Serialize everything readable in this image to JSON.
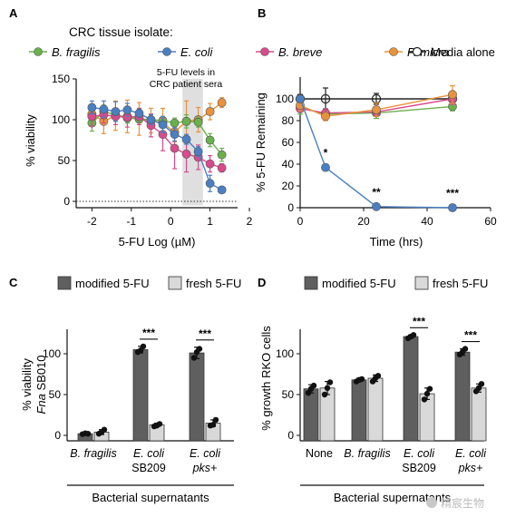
{
  "figure": {
    "colors": {
      "fragilis": "#6ab04c",
      "ecoli": "#4a7fc1",
      "breve": "#d94a8c",
      "micra": "#e8923c",
      "media": "#222222",
      "modified": "#5f5f5f",
      "fresh": "#d9d9d9",
      "band": "#d9d9d9"
    },
    "watermark": "精宸生物"
  },
  "chart_data": [
    {
      "panel": "A",
      "type": "line",
      "legend_title": "CRC tissue isolate:",
      "legend_placement": "top",
      "title": "",
      "xlabel_prefix": "5-FU Log (",
      "xlabel_unit": "µM",
      "xlabel_suffix": ")",
      "ylabel": "% viability",
      "xlim": [
        -2.4,
        1.7
      ],
      "ylim": [
        -5,
        150
      ],
      "xticks": [
        -2,
        -1,
        0,
        1,
        2
      ],
      "xticklabels": [
        "-2",
        "-1",
        "0",
        "1",
        "2"
      ],
      "yticks": [
        0,
        50,
        100,
        150
      ],
      "yticklabels": [
        "0",
        "50",
        "100",
        "150"
      ],
      "reference_line": 0,
      "annotation_line1": "5-FU levels in",
      "annotation_line2": "CRC patient sera",
      "highlight_range": [
        0.3,
        0.82
      ],
      "x": [
        -2.0,
        -1.7,
        -1.4,
        -1.1,
        -0.8,
        -0.5,
        -0.2,
        0.1,
        0.4,
        0.7,
        1.0,
        1.3
      ],
      "series": [
        {
          "name": "B. fragilis",
          "key": "fragilis",
          "values": [
            96,
            110,
            106,
            102,
            101,
            100,
            99,
            96,
            98,
            97,
            75,
            57
          ],
          "err": [
            10,
            8,
            8,
            6,
            5,
            4,
            5,
            6,
            8,
            6,
            8,
            8
          ]
        },
        {
          "name": "E. coli",
          "key": "ecoli",
          "values": [
            115,
            113,
            110,
            112,
            108,
            100,
            94,
            82,
            76,
            61,
            22,
            14
          ],
          "err": [
            8,
            10,
            12,
            8,
            5,
            6,
            10,
            8,
            6,
            6,
            10,
            3
          ]
        },
        {
          "name": "B. breve",
          "key": "breve",
          "values": [
            104,
            106,
            104,
            103,
            104,
            93,
            82,
            65,
            58,
            54,
            46,
            41
          ],
          "err": [
            12,
            10,
            10,
            12,
            10,
            14,
            20,
            25,
            22,
            15,
            10,
            5
          ]
        },
        {
          "name": "P. micra",
          "key": "micra",
          "values": [
            107,
            98,
            105,
            104,
            101,
            99,
            96,
            85,
            98,
            100,
            110,
            121
          ],
          "err": [
            12,
            15,
            18,
            20,
            20,
            15,
            18,
            12,
            25,
            15,
            10,
            6
          ]
        }
      ]
    },
    {
      "panel": "B",
      "type": "line",
      "legend_entry": "Media alone",
      "title": "",
      "xlabel": "Time (hrs)",
      "ylabel": "% 5-FU Remaining",
      "xlim": [
        0,
        60
      ],
      "ylim": [
        0,
        120
      ],
      "xticks": [
        0,
        20,
        40,
        60
      ],
      "xticklabels": [
        "0",
        "20",
        "40",
        "60"
      ],
      "yticks": [
        0,
        20,
        40,
        60,
        80,
        100
      ],
      "yticklabels": [
        "0",
        "20",
        "40",
        "60",
        "80",
        "100"
      ],
      "x": [
        0,
        8,
        24,
        48
      ],
      "series": [
        {
          "name": "Media alone",
          "key": "media",
          "values": [
            100,
            100,
            100,
            100
          ],
          "err": [
            4,
            10,
            5,
            5
          ]
        },
        {
          "name": "B. fragilis",
          "key": "fragilis",
          "values": [
            92,
            86,
            87,
            93
          ],
          "err": [
            6,
            4,
            5,
            4
          ]
        },
        {
          "name": "B. breve",
          "key": "breve",
          "values": [
            91,
            87,
            88,
            100
          ],
          "err": [
            3,
            4,
            3,
            5
          ]
        },
        {
          "name": "P. micra",
          "key": "micra",
          "values": [
            94,
            84,
            90,
            104
          ],
          "err": [
            5,
            4,
            6,
            8
          ]
        },
        {
          "name": "E. coli",
          "key": "ecoli",
          "values": [
            100,
            37,
            1,
            0
          ],
          "err": [
            0,
            2,
            1,
            1
          ]
        }
      ],
      "significance": [
        {
          "x": 8,
          "label": "*"
        },
        {
          "x": 24,
          "label": "**"
        },
        {
          "x": 48,
          "label": "***"
        }
      ]
    },
    {
      "panel": "C",
      "type": "bar",
      "legend": [
        "modified 5-FU",
        "fresh 5-FU"
      ],
      "legend_placement": "top",
      "title": "",
      "ylabel_line1": "% viability",
      "ylabel_line2_italic": "Fna",
      "ylabel_line2_rest": " SB010",
      "xlabel": "Bacterial supernatants",
      "ylim": [
        0,
        130
      ],
      "yticks": [
        0,
        50,
        100
      ],
      "yticklabels": [
        "0",
        "50",
        "100"
      ],
      "categories": [
        {
          "line1": "B. fragilis",
          "line1_italic": true,
          "line2": "",
          "line2_italic": false
        },
        {
          "line1": "E. coli",
          "line1_italic": true,
          "line2": "SB209",
          "line2_italic": false
        },
        {
          "line1": "E. coli",
          "line1_italic": true,
          "line2": "pks+",
          "line2_italic": true
        }
      ],
      "series": [
        {
          "name": "modified 5-FU",
          "key": "modified",
          "values": [
            2,
            105,
            101
          ],
          "err": [
            1,
            4,
            7
          ],
          "points": [
            [
              1.5,
              2.5,
              2
            ],
            [
              102,
              104,
              109
            ],
            [
              95,
              102,
              106
            ]
          ]
        },
        {
          "name": "fresh 5-FU",
          "key": "fresh",
          "values": [
            4,
            13,
            15
          ],
          "err": [
            3,
            2,
            4
          ],
          "points": [
            [
              2,
              4,
              7
            ],
            [
              11,
              12,
              14
            ],
            [
              12,
              13,
              19
            ]
          ]
        }
      ],
      "significance": [
        {
          "category": 1,
          "label": "***"
        },
        {
          "category": 2,
          "label": "***"
        }
      ]
    },
    {
      "panel": "D",
      "type": "bar",
      "legend": [
        "modified 5-FU",
        "fresh 5-FU"
      ],
      "legend_placement": "top",
      "title": "",
      "ylabel": "% growth RKO cells",
      "xlabel": "Bacterial supernatants",
      "ylim": [
        0,
        130
      ],
      "yticks": [
        0,
        50,
        100
      ],
      "yticklabels": [
        "0",
        "50",
        "100"
      ],
      "categories": [
        {
          "line1": "None",
          "line1_italic": false,
          "line2": "",
          "line2_italic": false
        },
        {
          "line1": "B. fragilis",
          "line1_italic": true,
          "line2": "",
          "line2_italic": false
        },
        {
          "line1": "E. coli",
          "line1_italic": true,
          "line2": "SB209",
          "line2_italic": false
        },
        {
          "line1": "E. coli",
          "line1_italic": true,
          "line2": "pks+",
          "line2_italic": true
        }
      ],
      "series": [
        {
          "name": "modified 5-FU",
          "key": "modified",
          "values": [
            57,
            68,
            121,
            102
          ],
          "err": [
            5,
            2,
            2,
            4
          ],
          "points": [
            [
              52,
              57,
              61
            ],
            [
              66,
              68,
              69
            ],
            [
              119,
              121,
              123
            ],
            [
              99,
              102,
              106
            ]
          ]
        },
        {
          "name": "fresh 5-FU",
          "key": "fresh",
          "values": [
            58,
            70,
            51,
            58
          ],
          "err": [
            8,
            4,
            7,
            5
          ],
          "points": [
            [
              50,
              58,
              65
            ],
            [
              66,
              70,
              73
            ],
            [
              44,
              51,
              57
            ],
            [
              54,
              58,
              63
            ]
          ]
        }
      ],
      "significance": [
        {
          "category": 2,
          "label": "***"
        },
        {
          "category": 3,
          "label": "***"
        }
      ]
    }
  ],
  "panel_labels": [
    "A",
    "B",
    "C",
    "D"
  ]
}
